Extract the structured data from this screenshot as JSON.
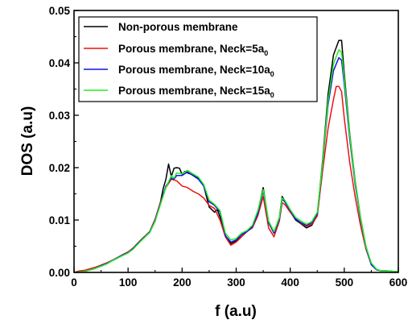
{
  "chart_data": {
    "type": "line",
    "xlabel": "f (a.u)",
    "ylabel": "DOS (a.u)",
    "xlim": [
      0,
      600
    ],
    "ylim": [
      0,
      0.05
    ],
    "x_ticks": [
      "0",
      "100",
      "200",
      "300",
      "400",
      "500",
      "600"
    ],
    "y_ticks": [
      "0.00",
      "0.01",
      "0.02",
      "0.03",
      "0.04",
      "0.05"
    ],
    "grid": false,
    "legend_position": "top-left",
    "series": [
      {
        "name": "Non-porous membrane",
        "legend_text": "Non-porous membrane",
        "legend_sub": "",
        "color": "#000000",
        "points": [
          [
            0,
            0
          ],
          [
            10,
            0.0002
          ],
          [
            20,
            0.0003
          ],
          [
            30,
            0.0005
          ],
          [
            40,
            0.0008
          ],
          [
            50,
            0.0012
          ],
          [
            60,
            0.0016
          ],
          [
            70,
            0.0022
          ],
          [
            80,
            0.0027
          ],
          [
            90,
            0.0033
          ],
          [
            100,
            0.0038
          ],
          [
            110,
            0.0047
          ],
          [
            120,
            0.0058
          ],
          [
            130,
            0.0068
          ],
          [
            140,
            0.0076
          ],
          [
            150,
            0.0098
          ],
          [
            160,
            0.0135
          ],
          [
            165,
            0.016
          ],
          [
            170,
            0.0178
          ],
          [
            175,
            0.0207
          ],
          [
            180,
            0.0183
          ],
          [
            185,
            0.0199
          ],
          [
            190,
            0.02
          ],
          [
            195,
            0.0199
          ],
          [
            200,
            0.0187
          ],
          [
            205,
            0.0193
          ],
          [
            210,
            0.019
          ],
          [
            220,
            0.0186
          ],
          [
            230,
            0.018
          ],
          [
            240,
            0.0165
          ],
          [
            250,
            0.0125
          ],
          [
            260,
            0.0115
          ],
          [
            265,
            0.012
          ],
          [
            270,
            0.0106
          ],
          [
            280,
            0.007
          ],
          [
            290,
            0.0055
          ],
          [
            300,
            0.006
          ],
          [
            310,
            0.0072
          ],
          [
            320,
            0.0078
          ],
          [
            330,
            0.0088
          ],
          [
            340,
            0.0115
          ],
          [
            350,
            0.0162
          ],
          [
            360,
            0.0095
          ],
          [
            370,
            0.0075
          ],
          [
            380,
            0.0105
          ],
          [
            385,
            0.0145
          ],
          [
            390,
            0.0137
          ],
          [
            400,
            0.0116
          ],
          [
            410,
            0.01
          ],
          [
            420,
            0.0093
          ],
          [
            430,
            0.0085
          ],
          [
            440,
            0.009
          ],
          [
            450,
            0.011
          ],
          [
            460,
            0.0215
          ],
          [
            470,
            0.034
          ],
          [
            480,
            0.0415
          ],
          [
            490,
            0.0443
          ],
          [
            495,
            0.0443
          ],
          [
            500,
            0.038
          ],
          [
            510,
            0.0265
          ],
          [
            520,
            0.0175
          ],
          [
            530,
            0.0105
          ],
          [
            540,
            0.005
          ],
          [
            550,
            0.0015
          ],
          [
            560,
            0.0005
          ],
          [
            570,
            0.0003
          ],
          [
            580,
            0.0003
          ],
          [
            590,
            0.0002
          ],
          [
            600,
            0.0002
          ]
        ]
      },
      {
        "name": "Porous membrane, Neck=5a0",
        "legend_text": "Porous membrane, Neck=5a",
        "legend_sub": "0",
        "color": "#ee1111",
        "points": [
          [
            0,
            0
          ],
          [
            10,
            0.0003
          ],
          [
            20,
            0.0004
          ],
          [
            30,
            0.0007
          ],
          [
            40,
            0.001
          ],
          [
            50,
            0.0014
          ],
          [
            60,
            0.0018
          ],
          [
            70,
            0.0023
          ],
          [
            80,
            0.0028
          ],
          [
            90,
            0.0034
          ],
          [
            100,
            0.0039
          ],
          [
            110,
            0.0047
          ],
          [
            120,
            0.0058
          ],
          [
            130,
            0.0068
          ],
          [
            140,
            0.0078
          ],
          [
            150,
            0.0102
          ],
          [
            160,
            0.0135
          ],
          [
            170,
            0.0162
          ],
          [
            180,
            0.0178
          ],
          [
            190,
            0.0175
          ],
          [
            200,
            0.0165
          ],
          [
            210,
            0.0162
          ],
          [
            220,
            0.0155
          ],
          [
            230,
            0.015
          ],
          [
            240,
            0.0142
          ],
          [
            250,
            0.0128
          ],
          [
            260,
            0.0122
          ],
          [
            270,
            0.01
          ],
          [
            280,
            0.0068
          ],
          [
            290,
            0.0052
          ],
          [
            300,
            0.0058
          ],
          [
            310,
            0.0068
          ],
          [
            320,
            0.0078
          ],
          [
            330,
            0.0085
          ],
          [
            340,
            0.0108
          ],
          [
            350,
            0.0145
          ],
          [
            360,
            0.0085
          ],
          [
            370,
            0.0068
          ],
          [
            380,
            0.0098
          ],
          [
            385,
            0.0133
          ],
          [
            390,
            0.013
          ],
          [
            400,
            0.0115
          ],
          [
            410,
            0.0102
          ],
          [
            420,
            0.0094
          ],
          [
            430,
            0.0088
          ],
          [
            440,
            0.0092
          ],
          [
            450,
            0.0108
          ],
          [
            460,
            0.0195
          ],
          [
            470,
            0.0275
          ],
          [
            480,
            0.033
          ],
          [
            485,
            0.0355
          ],
          [
            490,
            0.0355
          ],
          [
            495,
            0.0345
          ],
          [
            500,
            0.0295
          ],
          [
            510,
            0.021
          ],
          [
            520,
            0.0145
          ],
          [
            530,
            0.009
          ],
          [
            540,
            0.0045
          ],
          [
            550,
            0.0015
          ],
          [
            560,
            0.0005
          ],
          [
            570,
            0.0003
          ],
          [
            580,
            0.0003
          ],
          [
            590,
            0.0002
          ],
          [
            600,
            0.0002
          ]
        ]
      },
      {
        "name": "Porous membrane, Neck=10a0",
        "legend_text": "Porous membrane, Neck=10a",
        "legend_sub": "0",
        "color": "#1111ee",
        "points": [
          [
            0,
            0
          ],
          [
            10,
            0.0001
          ],
          [
            20,
            0.0002
          ],
          [
            30,
            0.0005
          ],
          [
            40,
            0.0008
          ],
          [
            50,
            0.0013
          ],
          [
            60,
            0.0017
          ],
          [
            70,
            0.0022
          ],
          [
            80,
            0.0028
          ],
          [
            90,
            0.0033
          ],
          [
            100,
            0.0038
          ],
          [
            110,
            0.0046
          ],
          [
            120,
            0.0057
          ],
          [
            130,
            0.0067
          ],
          [
            140,
            0.0077
          ],
          [
            150,
            0.01
          ],
          [
            160,
            0.0132
          ],
          [
            170,
            0.0165
          ],
          [
            180,
            0.018
          ],
          [
            185,
            0.0178
          ],
          [
            190,
            0.0185
          ],
          [
            200,
            0.0185
          ],
          [
            210,
            0.0192
          ],
          [
            220,
            0.0185
          ],
          [
            230,
            0.0178
          ],
          [
            240,
            0.0165
          ],
          [
            250,
            0.0135
          ],
          [
            260,
            0.0128
          ],
          [
            270,
            0.0115
          ],
          [
            280,
            0.007
          ],
          [
            290,
            0.0058
          ],
          [
            300,
            0.0062
          ],
          [
            310,
            0.0072
          ],
          [
            320,
            0.0078
          ],
          [
            330,
            0.0087
          ],
          [
            340,
            0.0113
          ],
          [
            350,
            0.0155
          ],
          [
            360,
            0.0095
          ],
          [
            370,
            0.0075
          ],
          [
            380,
            0.0102
          ],
          [
            385,
            0.014
          ],
          [
            390,
            0.0135
          ],
          [
            400,
            0.0118
          ],
          [
            410,
            0.0102
          ],
          [
            420,
            0.0095
          ],
          [
            430,
            0.009
          ],
          [
            440,
            0.0095
          ],
          [
            450,
            0.0112
          ],
          [
            460,
            0.0208
          ],
          [
            470,
            0.032
          ],
          [
            480,
            0.0385
          ],
          [
            490,
            0.041
          ],
          [
            495,
            0.0405
          ],
          [
            500,
            0.036
          ],
          [
            510,
            0.0255
          ],
          [
            520,
            0.0168
          ],
          [
            530,
            0.0102
          ],
          [
            540,
            0.0048
          ],
          [
            550,
            0.0015
          ],
          [
            560,
            0.0005
          ],
          [
            570,
            0.0003
          ],
          [
            580,
            0.0003
          ],
          [
            590,
            0.0002
          ],
          [
            600,
            0.0002
          ]
        ]
      },
      {
        "name": "Porous membrane, Neck=15a0",
        "legend_text": "Porous membrane, Neck=15a",
        "legend_sub": "0",
        "color": "#22ee22",
        "points": [
          [
            0,
            0
          ],
          [
            10,
            0.0001
          ],
          [
            20,
            0.0002
          ],
          [
            30,
            0.0005
          ],
          [
            40,
            0.0008
          ],
          [
            50,
            0.0012
          ],
          [
            60,
            0.0016
          ],
          [
            70,
            0.0022
          ],
          [
            80,
            0.0027
          ],
          [
            90,
            0.0032
          ],
          [
            100,
            0.0037
          ],
          [
            110,
            0.0045
          ],
          [
            120,
            0.0056
          ],
          [
            130,
            0.0066
          ],
          [
            140,
            0.0076
          ],
          [
            150,
            0.0098
          ],
          [
            160,
            0.013
          ],
          [
            170,
            0.0162
          ],
          [
            180,
            0.0185
          ],
          [
            185,
            0.018
          ],
          [
            190,
            0.019
          ],
          [
            200,
            0.0188
          ],
          [
            210,
            0.0195
          ],
          [
            220,
            0.0188
          ],
          [
            230,
            0.0182
          ],
          [
            240,
            0.0168
          ],
          [
            250,
            0.0138
          ],
          [
            260,
            0.013
          ],
          [
            270,
            0.0118
          ],
          [
            280,
            0.0075
          ],
          [
            290,
            0.0062
          ],
          [
            300,
            0.0065
          ],
          [
            310,
            0.0075
          ],
          [
            320,
            0.008
          ],
          [
            330,
            0.009
          ],
          [
            340,
            0.0118
          ],
          [
            350,
            0.0158
          ],
          [
            360,
            0.0098
          ],
          [
            370,
            0.0078
          ],
          [
            380,
            0.0105
          ],
          [
            385,
            0.0142
          ],
          [
            390,
            0.0138
          ],
          [
            400,
            0.012
          ],
          [
            410,
            0.0105
          ],
          [
            420,
            0.0098
          ],
          [
            430,
            0.0092
          ],
          [
            440,
            0.0097
          ],
          [
            450,
            0.0115
          ],
          [
            460,
            0.021
          ],
          [
            470,
            0.0328
          ],
          [
            480,
            0.0398
          ],
          [
            490,
            0.0425
          ],
          [
            495,
            0.042
          ],
          [
            500,
            0.037
          ],
          [
            510,
            0.0262
          ],
          [
            520,
            0.0172
          ],
          [
            530,
            0.0105
          ],
          [
            540,
            0.005
          ],
          [
            550,
            0.0018
          ],
          [
            560,
            0.0006
          ],
          [
            570,
            0.0003
          ],
          [
            580,
            0.0003
          ],
          [
            590,
            0.0002
          ],
          [
            600,
            0.0002
          ]
        ]
      }
    ]
  }
}
